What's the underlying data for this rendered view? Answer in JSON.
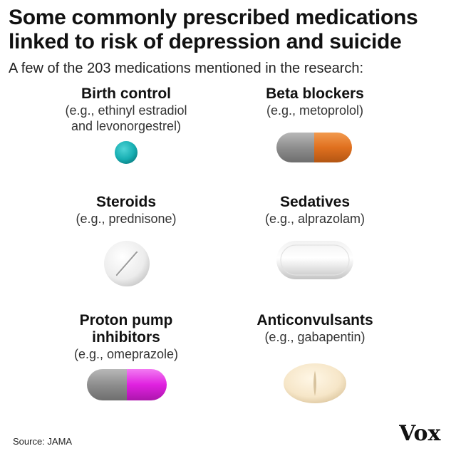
{
  "title_lines": [
    "Some commonly prescribed medications",
    "linked to risk of depression and suicide"
  ],
  "subtitle": "A few of the 203 medications mentioned in the research:",
  "items": [
    {
      "name_lines": [
        "Birth control"
      ],
      "example_lines": [
        "(e.g., ethinyl estradiol",
        "and levonorgestrel)"
      ],
      "pill": "teal-round-tablet",
      "color": "#1ab1b4"
    },
    {
      "name_lines": [
        "Beta blockers"
      ],
      "example_lines": [
        "(e.g., metoprolol)"
      ],
      "pill": "gray-orange-capsule",
      "colors": [
        "#8e8e8e",
        "#e0701f"
      ]
    },
    {
      "name_lines": [
        "Steroids"
      ],
      "example_lines": [
        "(e.g., prednisone)"
      ],
      "pill": "white-scored-round-tablet",
      "color": "#eeeeee"
    },
    {
      "name_lines": [
        "Sedatives"
      ],
      "example_lines": [
        "(e.g., alprazolam)"
      ],
      "pill": "white-oval-tablet",
      "color": "#eeeeee"
    },
    {
      "name_lines": [
        "Proton pump",
        "inhibitors"
      ],
      "example_lines": [
        "(e.g., omeprazole)"
      ],
      "pill": "gray-magenta-capsule",
      "colors": [
        "#8e8e8e",
        "#e021e0"
      ]
    },
    {
      "name_lines": [
        "Anticonvulsants"
      ],
      "example_lines": [
        "(e.g., gabapentin)"
      ],
      "pill": "cream-scored-oval-tablet",
      "color": "#f6e6c8"
    }
  ],
  "source": "Source: JAMA",
  "logo_text": "Vox"
}
